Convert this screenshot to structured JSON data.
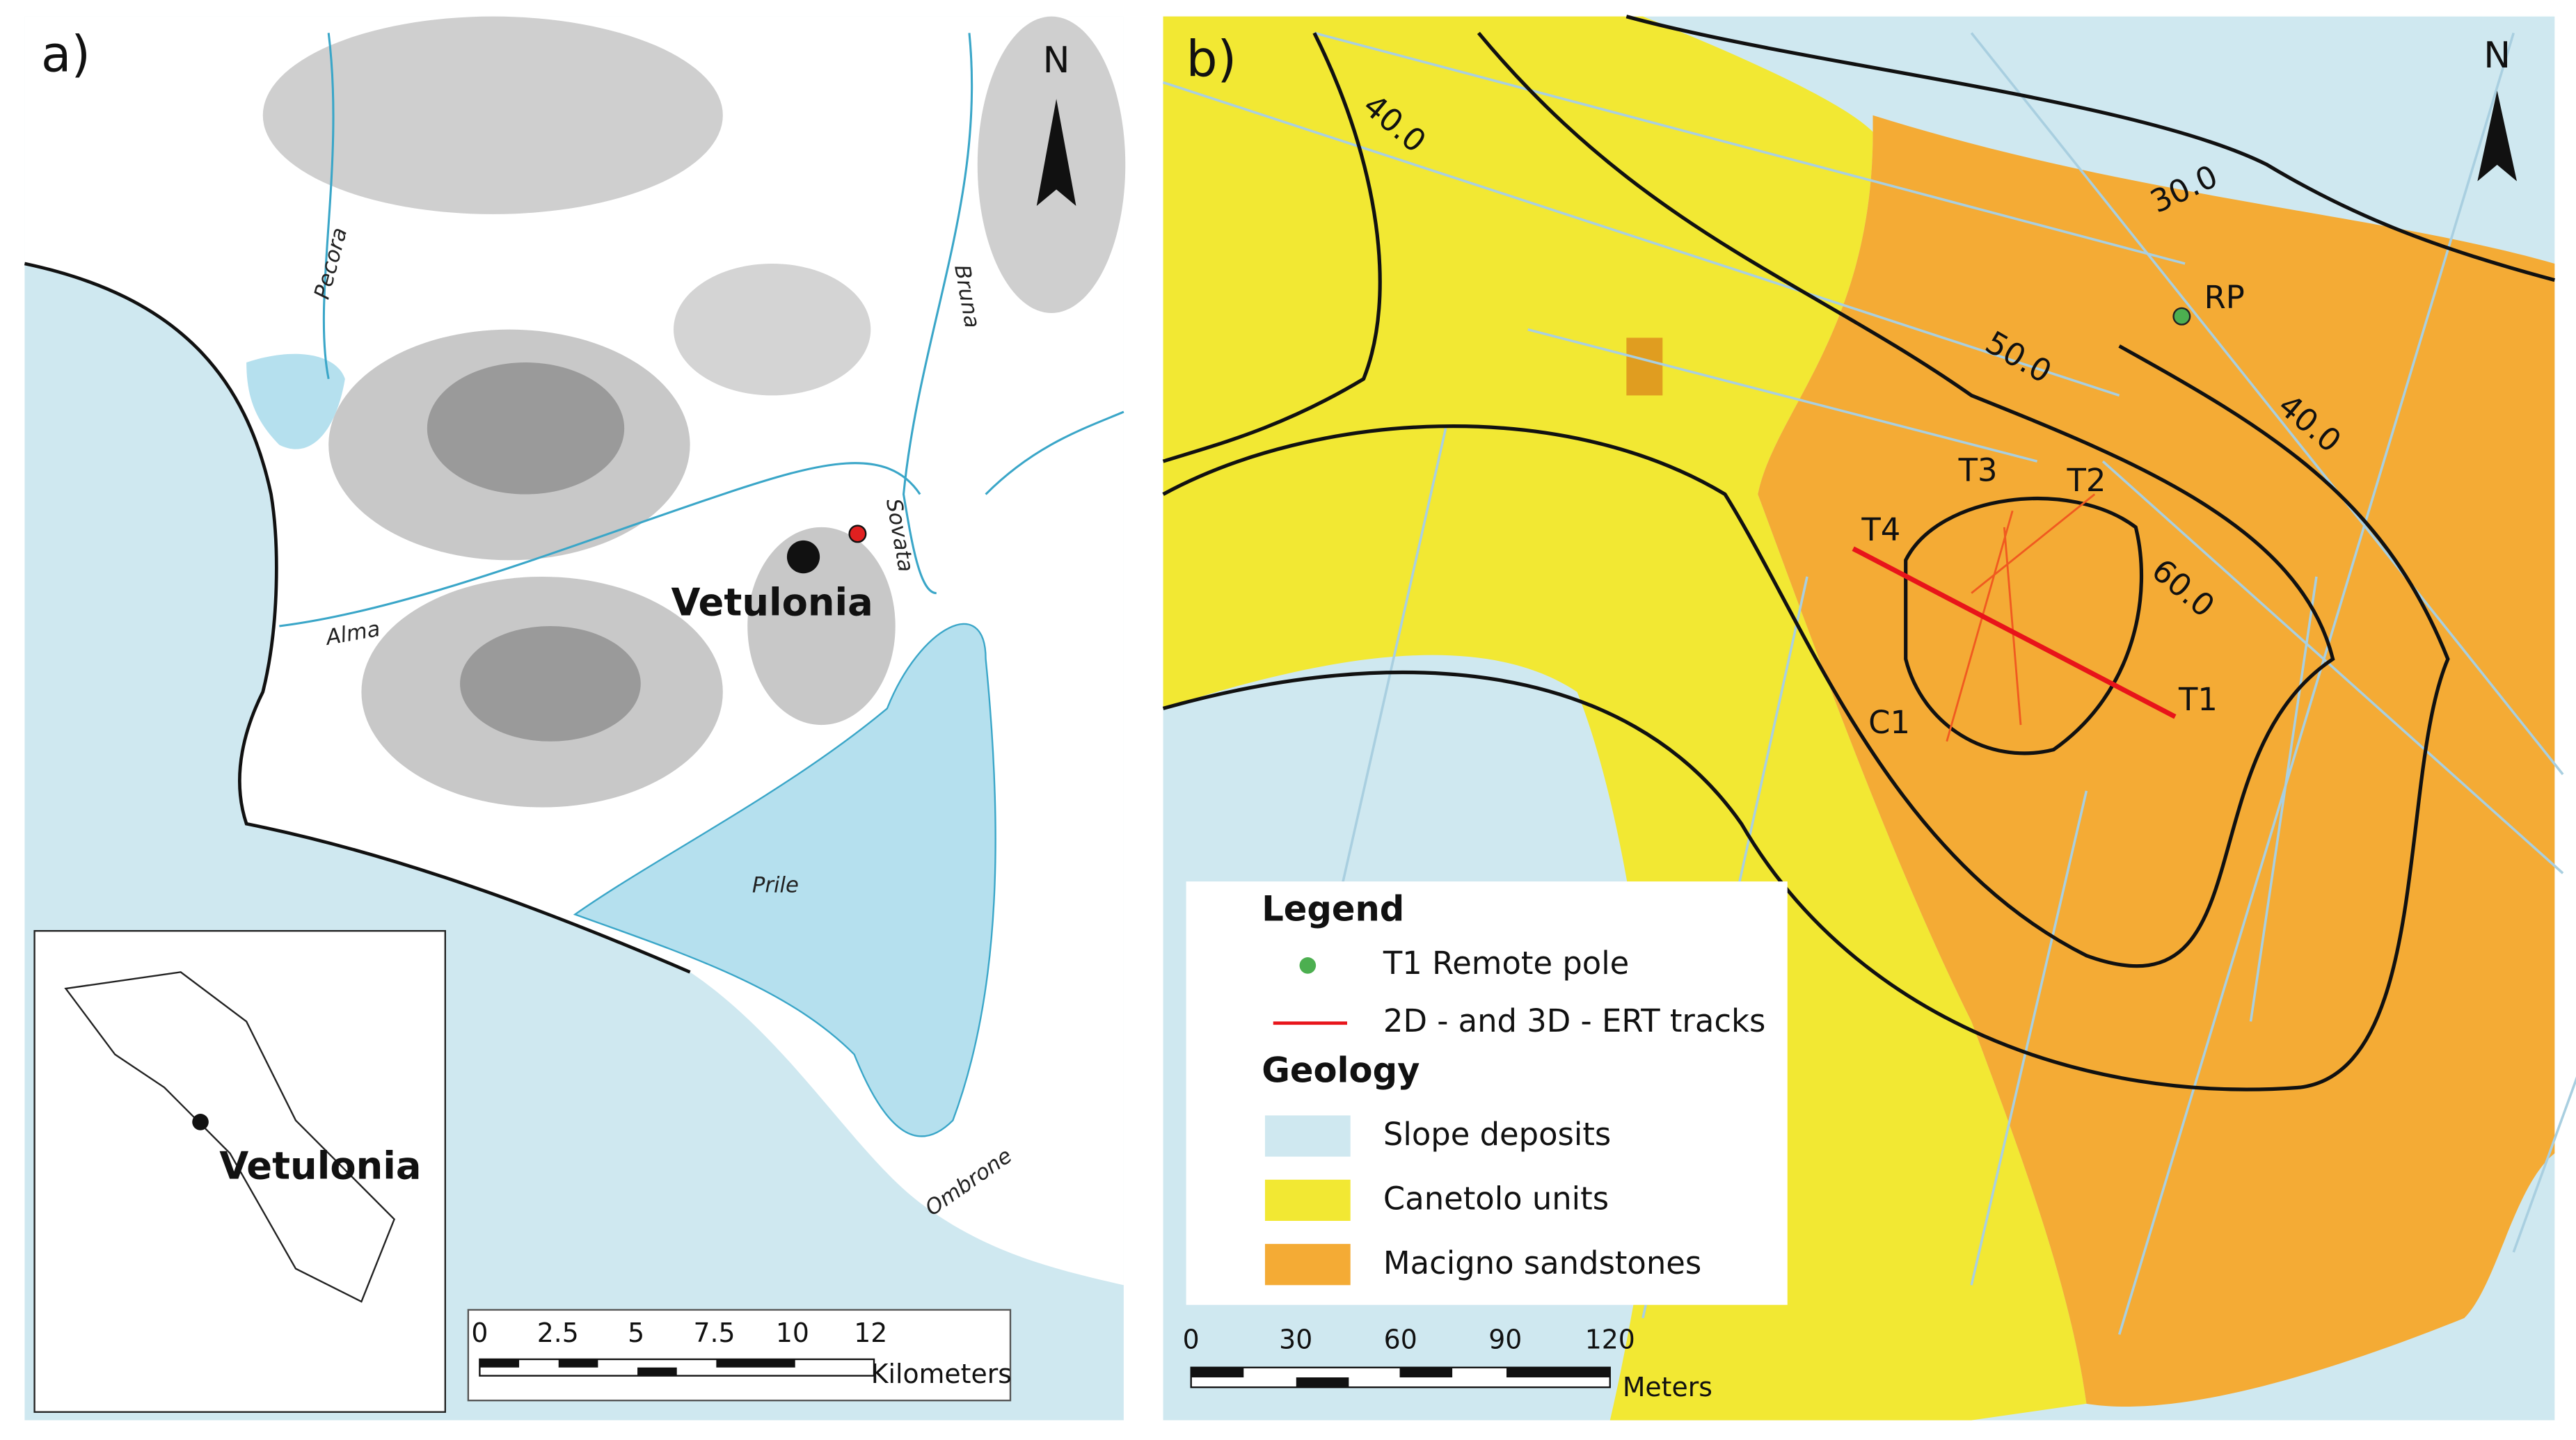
{
  "panel_a": {
    "label": "a)",
    "north": "N",
    "rivers": [
      "Pecora",
      "Bruna",
      "Sovata",
      "Alma",
      "Ombrone"
    ],
    "lagoon": "Prile",
    "site": "Vetulonia",
    "inset_site": "Vetulonia",
    "scale_bar": {
      "ticks": [
        "0",
        "2.5",
        "5",
        "7.5",
        "10",
        "12"
      ],
      "unit": "Kilometers"
    }
  },
  "panel_b": {
    "label": "b)",
    "north": "N",
    "contours": [
      "40.0",
      "30.0",
      "50.0",
      "40.0",
      "60.0"
    ],
    "points": [
      "RP",
      "T1",
      "T2",
      "T3",
      "T4",
      "C1"
    ],
    "legend": {
      "title": "Legend",
      "items": [
        "T1 Remote pole",
        "2D - and 3D - ERT tracks"
      ],
      "geology_title": "Geology",
      "geology": [
        "Slope deposits",
        "Canetolo units",
        "Macigno sandstones"
      ]
    },
    "scale_bar": {
      "ticks": [
        "0",
        "30",
        "60",
        "90",
        "120"
      ],
      "unit": "Meters"
    }
  }
}
